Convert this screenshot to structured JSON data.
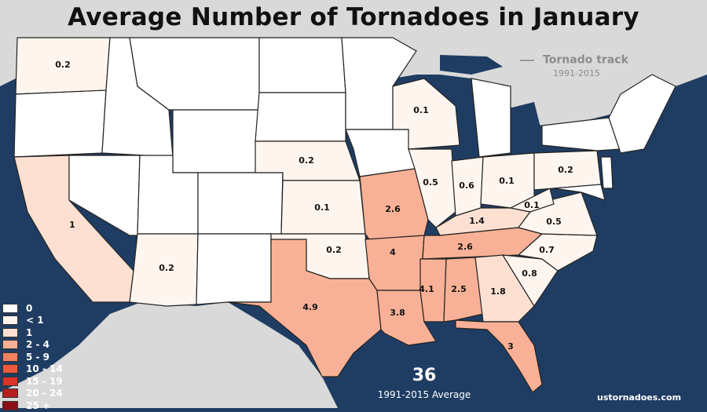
{
  "title": "Average Number of Tornadoes in January",
  "track_legend": {
    "label": "Tornado track",
    "years": "1991-2015"
  },
  "legend": [
    {
      "label": "0",
      "color": "#ffffff"
    },
    {
      "label": "< 1",
      "color": "#fff5ef"
    },
    {
      "label": "1",
      "color": "#fde0d2"
    },
    {
      "label": "2 - 4",
      "color": "#f8b196"
    },
    {
      "label": "5 - 9",
      "color": "#f48262"
    },
    {
      "label": "10 - 14",
      "color": "#ee5a3c"
    },
    {
      "label": "15 - 19",
      "color": "#dc3326"
    },
    {
      "label": "20 - 24",
      "color": "#b51f1f"
    },
    {
      "label": "25 +",
      "color": "#8a0f17"
    }
  ],
  "total": {
    "value": "36",
    "subtitle": "1991-2015 Average"
  },
  "credit": "ustornadoes.com",
  "states": [
    {
      "state": "WA",
      "value": "0.2"
    },
    {
      "state": "CA",
      "value": "1"
    },
    {
      "state": "AZ",
      "value": "0.2"
    },
    {
      "state": "NE",
      "value": "0.2"
    },
    {
      "state": "KS",
      "value": "0.1"
    },
    {
      "state": "OK",
      "value": "0.2"
    },
    {
      "state": "TX",
      "value": "4.9"
    },
    {
      "state": "MO",
      "value": "2.6"
    },
    {
      "state": "AR",
      "value": "4"
    },
    {
      "state": "LA",
      "value": "3.8"
    },
    {
      "state": "MS",
      "value": "4.1"
    },
    {
      "state": "AL",
      "value": "2.5"
    },
    {
      "state": "GA",
      "value": "1.8"
    },
    {
      "state": "FL",
      "value": "3"
    },
    {
      "state": "TN",
      "value": "2.6"
    },
    {
      "state": "KY",
      "value": "1.4"
    },
    {
      "state": "IL",
      "value": "0.5"
    },
    {
      "state": "IN",
      "value": "0.6"
    },
    {
      "state": "OH",
      "value": "0.1"
    },
    {
      "state": "WI",
      "value": "0.1"
    },
    {
      "state": "PA",
      "value": "0.2"
    },
    {
      "state": "WV",
      "value": "0.1"
    },
    {
      "state": "VA",
      "value": "0.5"
    },
    {
      "state": "NC",
      "value": "0.7"
    },
    {
      "state": "SC",
      "value": "0.8"
    }
  ]
}
